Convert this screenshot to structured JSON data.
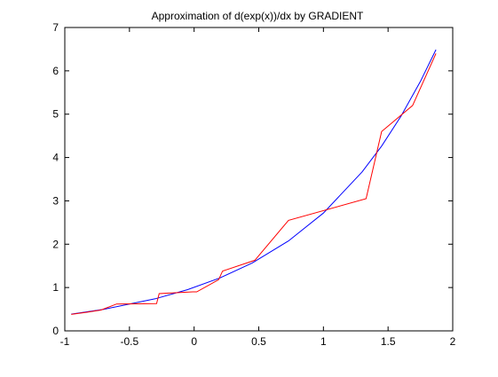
{
  "chart_data": {
    "type": "line",
    "title": "Approximation of d(exp(x))/dx by GRADIENT",
    "xlabel": "",
    "ylabel": "",
    "xlim": [
      -1,
      2
    ],
    "ylim": [
      0,
      7
    ],
    "xticks": [
      "-1",
      "-0.5",
      "0",
      "0.5",
      "1",
      "1.5",
      "2"
    ],
    "yticks": [
      "0",
      "1",
      "2",
      "3",
      "4",
      "5",
      "6",
      "7"
    ],
    "grid": false,
    "series": [
      {
        "color": "#0000ff",
        "points": [
          [
            -0.95,
            0.387
          ],
          [
            -0.7,
            0.497
          ],
          [
            -0.3,
            0.741
          ],
          [
            -0.05,
            0.951
          ],
          [
            0.2,
            1.221
          ],
          [
            0.45,
            1.568
          ],
          [
            0.73,
            2.075
          ],
          [
            1.0,
            2.718
          ],
          [
            1.3,
            3.669
          ],
          [
            1.45,
            4.263
          ],
          [
            1.6,
            4.953
          ],
          [
            1.75,
            5.755
          ],
          [
            1.87,
            6.488
          ]
        ]
      },
      {
        "color": "#ff0000",
        "points": [
          [
            -0.95,
            0.38
          ],
          [
            -0.83,
            0.43
          ],
          [
            -0.72,
            0.48
          ],
          [
            -0.6,
            0.62
          ],
          [
            -0.29,
            0.63
          ],
          [
            -0.27,
            0.86
          ],
          [
            -0.01,
            0.9
          ],
          [
            0.02,
            0.9
          ],
          [
            0.19,
            1.18
          ],
          [
            0.22,
            1.38
          ],
          [
            0.47,
            1.63
          ],
          [
            0.73,
            2.55
          ],
          [
            1.33,
            3.05
          ],
          [
            1.45,
            4.6
          ],
          [
            1.69,
            5.2
          ],
          [
            1.87,
            6.4
          ]
        ]
      }
    ]
  }
}
